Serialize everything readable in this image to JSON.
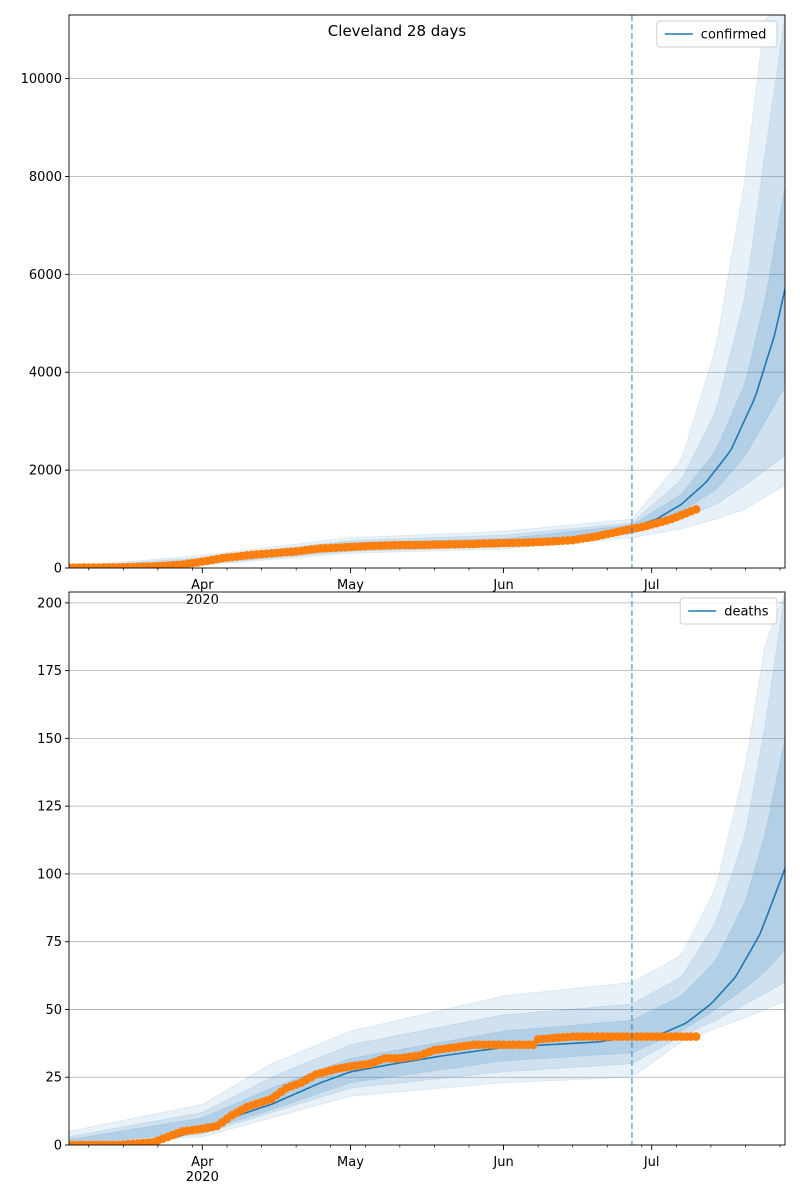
{
  "chart_data": [
    {
      "type": "line",
      "title": "Cleveland 28 days",
      "xlabel": "",
      "ylabel": "",
      "grid": "y-major",
      "legend": "top-right",
      "xlim": [
        "2020-03-05",
        "2020-07-28"
      ],
      "ylim": [
        0,
        11300
      ],
      "yticks": [
        0,
        2000,
        4000,
        6000,
        8000,
        10000
      ],
      "ytick_labels": [
        "0",
        "2000",
        "4000",
        "6000",
        "8000",
        "10000"
      ],
      "xticks": [
        "2020-04-01",
        "2020-05-01",
        "2020-06-01",
        "2020-07-01"
      ],
      "xtick_labels": [
        "Apr\n2020",
        "May",
        "Jun",
        "Jul"
      ],
      "forecast_start": "2020-06-27",
      "colors": {
        "model": "#1f77b4",
        "observed": "#ff7f0e",
        "band": "#1f77b4"
      },
      "series": [
        {
          "name": "confirmed",
          "kind": "model-median",
          "x": [
            "2020-03-05",
            "2020-03-15",
            "2020-03-22",
            "2020-03-28",
            "2020-04-05",
            "2020-04-15",
            "2020-04-25",
            "2020-05-05",
            "2020-05-15",
            "2020-05-25",
            "2020-06-05",
            "2020-06-15",
            "2020-06-22",
            "2020-06-27",
            "2020-07-02",
            "2020-07-07",
            "2020-07-12",
            "2020-07-17",
            "2020-07-22",
            "2020-07-26",
            "2020-07-28"
          ],
          "y": [
            5,
            10,
            30,
            80,
            200,
            300,
            390,
            450,
            470,
            490,
            510,
            560,
            680,
            830,
            1000,
            1300,
            1750,
            2400,
            3500,
            4800,
            5700
          ]
        },
        {
          "name": "",
          "kind": "observed",
          "x": [
            "2020-03-05",
            "2020-03-15",
            "2020-03-22",
            "2020-03-28",
            "2020-04-01",
            "2020-04-05",
            "2020-04-10",
            "2020-04-15",
            "2020-04-20",
            "2020-04-25",
            "2020-05-01",
            "2020-05-05",
            "2020-05-10",
            "2020-05-15",
            "2020-05-20",
            "2020-05-25",
            "2020-06-01",
            "2020-06-05",
            "2020-06-10",
            "2020-06-15",
            "2020-06-20",
            "2020-06-25",
            "2020-06-30",
            "2020-07-05",
            "2020-07-10"
          ],
          "y": [
            10,
            15,
            30,
            70,
            130,
            200,
            260,
            300,
            340,
            400,
            430,
            450,
            465,
            470,
            480,
            490,
            510,
            520,
            540,
            570,
            650,
            760,
            860,
            1000,
            1200
          ]
        }
      ],
      "bands": [
        {
          "level": "outer",
          "x": [
            "2020-03-05",
            "2020-04-01",
            "2020-05-01",
            "2020-06-01",
            "2020-06-27",
            "2020-07-07",
            "2020-07-14",
            "2020-07-20",
            "2020-07-24",
            "2020-07-28"
          ],
          "lower": [
            0,
            60,
            300,
            390,
            620,
            800,
            1000,
            1200,
            1450,
            1700
          ],
          "upper": [
            30,
            260,
            620,
            750,
            1000,
            2200,
            4500,
            8000,
            11300,
            11300
          ]
        },
        {
          "level": "middle",
          "x": [
            "2020-03-05",
            "2020-04-01",
            "2020-05-01",
            "2020-06-01",
            "2020-06-27",
            "2020-07-07",
            "2020-07-14",
            "2020-07-20",
            "2020-07-24",
            "2020-07-28"
          ],
          "lower": [
            0,
            80,
            340,
            430,
            700,
            1000,
            1300,
            1700,
            2000,
            2300
          ],
          "upper": [
            20,
            210,
            560,
            670,
            920,
            1800,
            3200,
            5600,
            8500,
            11300
          ]
        },
        {
          "level": "inner",
          "x": [
            "2020-03-05",
            "2020-04-01",
            "2020-05-01",
            "2020-06-01",
            "2020-06-27",
            "2020-07-07",
            "2020-07-14",
            "2020-07-20",
            "2020-07-24",
            "2020-07-28"
          ],
          "lower": [
            2,
            100,
            380,
            460,
            760,
            1150,
            1600,
            2300,
            3000,
            3700
          ],
          "upper": [
            12,
            170,
            520,
            600,
            880,
            1500,
            2400,
            3800,
            5500,
            7800
          ]
        }
      ]
    },
    {
      "type": "line",
      "title": "",
      "xlabel": "",
      "ylabel": "",
      "grid": "y-major",
      "legend": "top-right",
      "xlim": [
        "2020-03-05",
        "2020-07-28"
      ],
      "ylim": [
        0,
        204
      ],
      "yticks": [
        0,
        25,
        50,
        75,
        100,
        125,
        150,
        175,
        200
      ],
      "ytick_labels": [
        "0",
        "25",
        "50",
        "75",
        "100",
        "125",
        "150",
        "175",
        "200"
      ],
      "xticks": [
        "2020-04-01",
        "2020-05-01",
        "2020-06-01",
        "2020-07-01"
      ],
      "xtick_labels": [
        "Apr\n2020",
        "May",
        "Jun",
        "Jul"
      ],
      "forecast_start": "2020-06-27",
      "colors": {
        "model": "#1f77b4",
        "observed": "#ff7f0e",
        "band": "#1f77b4"
      },
      "series": [
        {
          "name": "deaths",
          "kind": "model-median",
          "x": [
            "2020-03-05",
            "2020-03-20",
            "2020-03-27",
            "2020-04-01",
            "2020-04-05",
            "2020-04-10",
            "2020-04-15",
            "2020-04-20",
            "2020-04-25",
            "2020-05-01",
            "2020-05-10",
            "2020-05-20",
            "2020-06-01",
            "2020-06-10",
            "2020-06-20",
            "2020-06-27",
            "2020-07-03",
            "2020-07-08",
            "2020-07-13",
            "2020-07-18",
            "2020-07-23",
            "2020-07-28"
          ],
          "y": [
            0,
            1,
            3,
            6,
            9,
            12,
            15,
            19,
            23,
            27,
            30,
            33,
            36,
            37,
            38,
            40,
            41,
            45,
            52,
            62,
            78,
            102
          ]
        },
        {
          "name": "",
          "kind": "observed",
          "x": [
            "2020-03-05",
            "2020-03-15",
            "2020-03-22",
            "2020-03-25",
            "2020-03-28",
            "2020-04-01",
            "2020-04-04",
            "2020-04-07",
            "2020-04-10",
            "2020-04-15",
            "2020-04-18",
            "2020-04-21",
            "2020-04-24",
            "2020-04-28",
            "2020-05-01",
            "2020-05-05",
            "2020-05-08",
            "2020-05-11",
            "2020-05-15",
            "2020-05-18",
            "2020-05-22",
            "2020-05-26",
            "2020-06-01",
            "2020-06-07",
            "2020-06-08",
            "2020-06-15",
            "2020-06-20",
            "2020-06-25",
            "2020-07-01",
            "2020-07-05",
            "2020-07-10"
          ],
          "y": [
            0,
            0,
            1,
            3,
            5,
            6,
            7,
            11,
            14,
            17,
            21,
            23,
            26,
            28,
            29,
            30,
            32,
            32,
            33,
            35,
            36,
            37,
            37,
            37,
            39,
            40,
            40,
            40,
            40,
            40,
            40
          ]
        }
      ],
      "bands": [
        {
          "level": "outer",
          "x": [
            "2020-03-05",
            "2020-04-01",
            "2020-04-15",
            "2020-05-01",
            "2020-06-01",
            "2020-06-27",
            "2020-07-07",
            "2020-07-14",
            "2020-07-20",
            "2020-07-24",
            "2020-07-28"
          ],
          "lower": [
            0,
            3,
            10,
            18,
            23,
            25,
            38,
            43,
            47,
            50,
            53
          ],
          "upper": [
            5,
            15,
            30,
            42,
            55,
            60,
            70,
            95,
            140,
            185,
            204
          ]
        },
        {
          "level": "middle",
          "x": [
            "2020-03-05",
            "2020-04-01",
            "2020-04-15",
            "2020-05-01",
            "2020-06-01",
            "2020-06-27",
            "2020-07-07",
            "2020-07-14",
            "2020-07-20",
            "2020-07-24",
            "2020-07-28"
          ],
          "lower": [
            0,
            4,
            12,
            21,
            27,
            30,
            40,
            46,
            52,
            56,
            60
          ],
          "upper": [
            3,
            12,
            25,
            37,
            48,
            52,
            62,
            82,
            115,
            155,
            204
          ]
        },
        {
          "level": "inner",
          "x": [
            "2020-03-05",
            "2020-04-01",
            "2020-04-15",
            "2020-05-01",
            "2020-06-01",
            "2020-06-27",
            "2020-07-07",
            "2020-07-14",
            "2020-07-20",
            "2020-07-24",
            "2020-07-28"
          ],
          "lower": [
            0,
            5,
            13,
            23,
            31,
            34,
            42,
            50,
            58,
            64,
            72
          ],
          "upper": [
            2,
            10,
            21,
            32,
            42,
            46,
            55,
            68,
            90,
            115,
            150
          ]
        }
      ]
    }
  ]
}
